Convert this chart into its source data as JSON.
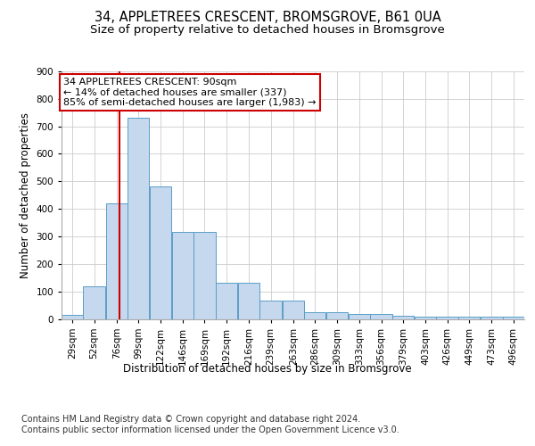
{
  "title_line1": "34, APPLETREES CRESCENT, BROMSGROVE, B61 0UA",
  "title_line2": "Size of property relative to detached houses in Bromsgrove",
  "xlabel": "Distribution of detached houses by size in Bromsgrove",
  "ylabel": "Number of detached properties",
  "bar_color": "#c5d8ed",
  "bar_edge_color": "#5a9ec8",
  "grid_color": "#cccccc",
  "background_color": "#ffffff",
  "vline_x": 90,
  "vline_color": "#cc0000",
  "annotation_text": "34 APPLETREES CRESCENT: 90sqm\n← 14% of detached houses are smaller (337)\n85% of semi-detached houses are larger (1,983) →",
  "annotation_box_color": "#ffffff",
  "annotation_box_edge": "#cc0000",
  "footnote": "Contains HM Land Registry data © Crown copyright and database right 2024.\nContains public sector information licensed under the Open Government Licence v3.0.",
  "categories": [
    "29sqm",
    "52sqm",
    "76sqm",
    "99sqm",
    "122sqm",
    "146sqm",
    "169sqm",
    "192sqm",
    "216sqm",
    "239sqm",
    "263sqm",
    "286sqm",
    "309sqm",
    "333sqm",
    "356sqm",
    "379sqm",
    "403sqm",
    "426sqm",
    "449sqm",
    "473sqm",
    "496sqm"
  ],
  "bin_edges": [
    29,
    52,
    76,
    99,
    122,
    146,
    169,
    192,
    216,
    239,
    263,
    286,
    309,
    333,
    356,
    379,
    403,
    426,
    449,
    473,
    496
  ],
  "values": [
    15,
    120,
    420,
    730,
    480,
    315,
    315,
    130,
    130,
    65,
    65,
    25,
    25,
    18,
    18,
    10,
    8,
    8,
    8,
    8,
    8
  ],
  "ylim": [
    0,
    900
  ],
  "yticks": [
    0,
    100,
    200,
    300,
    400,
    500,
    600,
    700,
    800,
    900
  ],
  "title_fontsize": 10.5,
  "subtitle_fontsize": 9.5,
  "axis_label_fontsize": 8.5,
  "tick_fontsize": 7.5,
  "annotation_fontsize": 8,
  "footnote_fontsize": 7
}
